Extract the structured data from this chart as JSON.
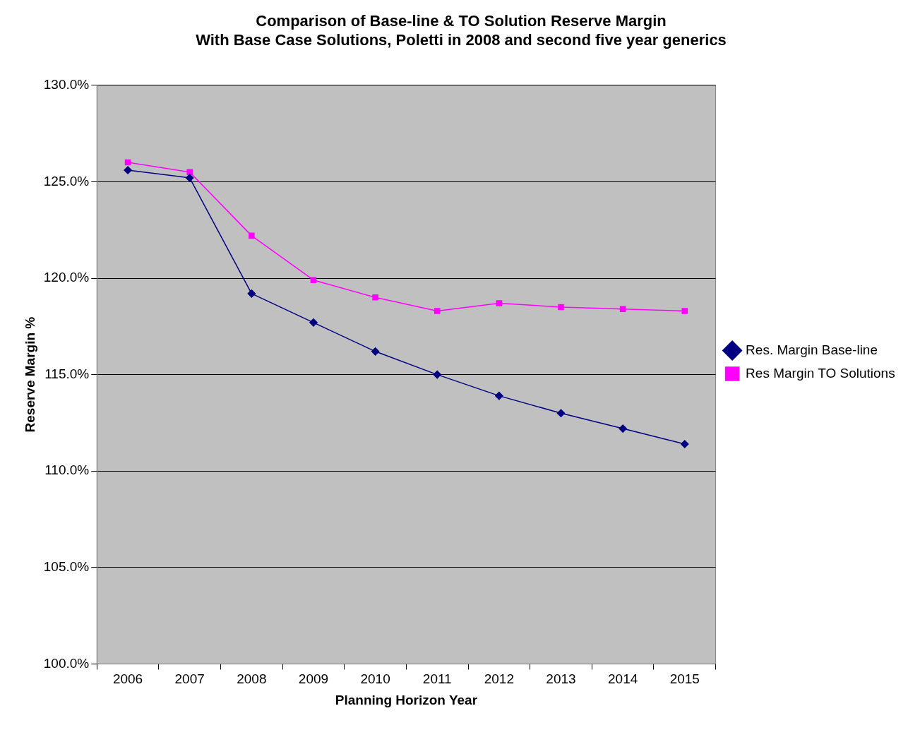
{
  "chart_data": {
    "type": "line",
    "title": [
      "Comparison of Base-line & TO Solution Reserve Margin",
      "With Base Case Solutions, Poletti in 2008 and second five year generics"
    ],
    "xlabel": "Planning Horizon Year",
    "ylabel": "Reserve Margin %",
    "categories": [
      "2006",
      "2007",
      "2008",
      "2009",
      "2010",
      "2011",
      "2012",
      "2013",
      "2014",
      "2015"
    ],
    "series": [
      {
        "name": "Res. Margin Base-line",
        "color": "#000080",
        "marker": "diamond",
        "values": [
          125.6,
          125.2,
          119.2,
          117.7,
          116.2,
          115.0,
          113.9,
          113.0,
          112.2,
          111.4
        ]
      },
      {
        "name": "Res Margin TO Solutions",
        "color": "#ff00ff",
        "marker": "square",
        "values": [
          126.0,
          125.5,
          122.2,
          119.9,
          119.0,
          118.3,
          118.7,
          118.5,
          118.4,
          118.3
        ]
      }
    ],
    "ylim": [
      100,
      130
    ],
    "yticks": [
      {
        "value": 100,
        "label": "100.0%"
      },
      {
        "value": 105,
        "label": "105.0%"
      },
      {
        "value": 110,
        "label": "110.0%"
      },
      {
        "value": 115,
        "label": "115.0%"
      },
      {
        "value": 120,
        "label": "120.0%"
      },
      {
        "value": 125,
        "label": "125.0%"
      },
      {
        "value": 130,
        "label": "130.0%"
      }
    ],
    "grid": "y",
    "legend": "right",
    "line_style": "solid"
  }
}
